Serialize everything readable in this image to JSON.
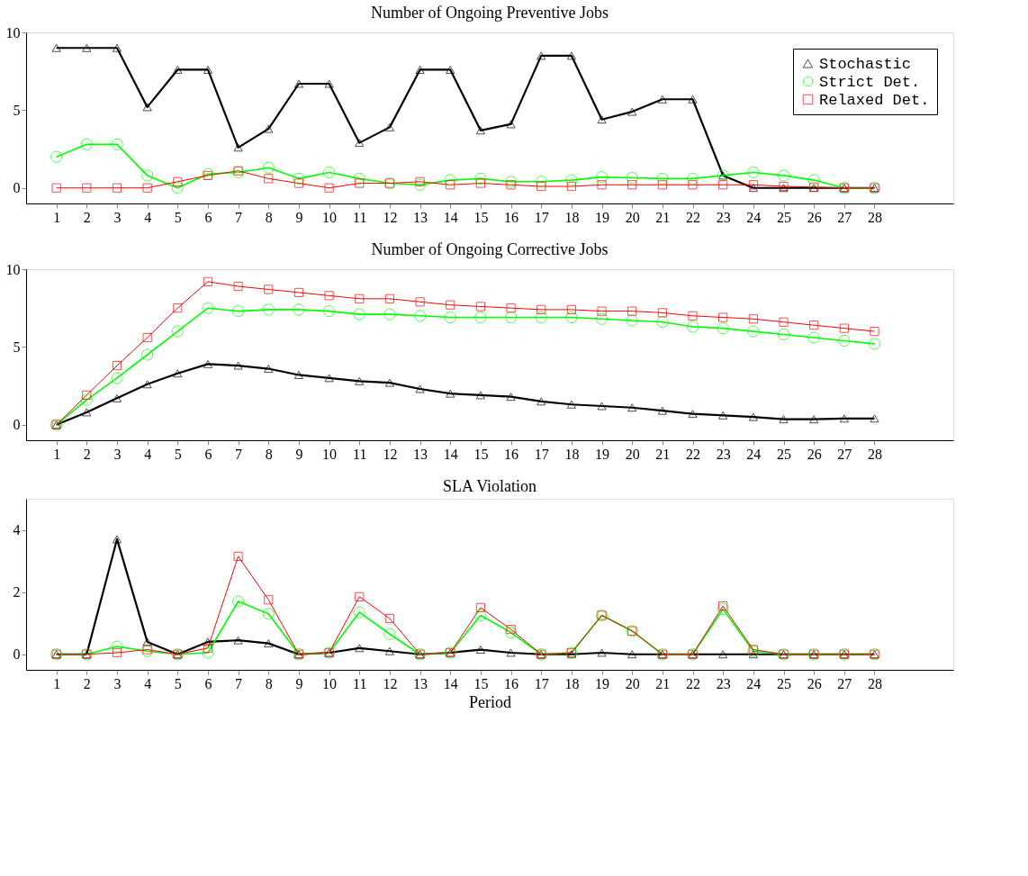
{
  "chart_data": [
    {
      "type": "line",
      "title": "Number of Ongoing Preventive Jobs",
      "x": [
        1,
        2,
        3,
        4,
        5,
        6,
        7,
        8,
        9,
        10,
        11,
        12,
        13,
        14,
        15,
        16,
        17,
        18,
        19,
        20,
        21,
        22,
        23,
        24,
        25,
        26,
        27,
        28
      ],
      "xlim": [
        0,
        30.6
      ],
      "xticks": [
        1,
        2,
        3,
        4,
        5,
        6,
        7,
        8,
        9,
        10,
        11,
        12,
        13,
        14,
        15,
        16,
        17,
        18,
        19,
        20,
        21,
        22,
        23,
        24,
        25,
        26,
        27,
        28
      ],
      "ylim": [
        -1,
        10
      ],
      "yticks": [
        0,
        5,
        10
      ],
      "grid": false,
      "legend": "top right",
      "series": [
        {
          "name": "Stochastic",
          "color": "#000000",
          "marker": "triangle",
          "values": [
            9,
            9,
            9,
            5.2,
            7.6,
            7.6,
            2.6,
            3.8,
            6.7,
            6.7,
            2.9,
            3.9,
            7.6,
            7.6,
            3.7,
            4.1,
            8.5,
            8.5,
            4.4,
            4.9,
            5.7,
            5.7,
            0.8,
            0,
            0,
            0,
            0,
            0
          ]
        },
        {
          "name": "Strict Det.",
          "color": "#00ff00",
          "marker": "circle",
          "values": [
            2.0,
            2.8,
            2.8,
            0.8,
            0,
            0.9,
            1.0,
            1.3,
            0.6,
            1.0,
            0.6,
            0.3,
            0.2,
            0.5,
            0.6,
            0.4,
            0.4,
            0.5,
            0.7,
            0.65,
            0.6,
            0.6,
            0.8,
            1.0,
            0.8,
            0.5,
            0,
            0
          ]
        },
        {
          "name": "Relaxed Det.",
          "color": "#ff0000",
          "marker": "square",
          "values": [
            0,
            0,
            0,
            0,
            0.4,
            0.8,
            1.1,
            0.6,
            0.3,
            0,
            0.3,
            0.3,
            0.4,
            0.2,
            0.3,
            0.2,
            0.1,
            0.1,
            0.2,
            0.2,
            0.2,
            0.2,
            0.2,
            0.2,
            0.1,
            0.05,
            0,
            0
          ]
        }
      ]
    },
    {
      "type": "line",
      "title": "Number of Ongoing Corrective Jobs",
      "x": [
        1,
        2,
        3,
        4,
        5,
        6,
        7,
        8,
        9,
        10,
        11,
        12,
        13,
        14,
        15,
        16,
        17,
        18,
        19,
        20,
        21,
        22,
        23,
        24,
        25,
        26,
        27,
        28
      ],
      "xlim": [
        0,
        30.6
      ],
      "xticks": [
        1,
        2,
        3,
        4,
        5,
        6,
        7,
        8,
        9,
        10,
        11,
        12,
        13,
        14,
        15,
        16,
        17,
        18,
        19,
        20,
        21,
        22,
        23,
        24,
        25,
        26,
        27,
        28
      ],
      "ylim": [
        -1,
        10
      ],
      "yticks": [
        0,
        5,
        10
      ],
      "grid": false,
      "legend": false,
      "series": [
        {
          "color": "#000000",
          "marker": "triangle",
          "values": [
            0,
            0.8,
            1.7,
            2.6,
            3.3,
            3.9,
            3.8,
            3.6,
            3.2,
            3.0,
            2.8,
            2.7,
            2.3,
            2.0,
            1.9,
            1.8,
            1.5,
            1.3,
            1.2,
            1.1,
            0.9,
            0.7,
            0.6,
            0.5,
            0.35,
            0.35,
            0.4,
            0.4
          ]
        },
        {
          "color": "#00ff00",
          "marker": "circle",
          "values": [
            0,
            1.6,
            3.0,
            4.5,
            6.0,
            7.5,
            7.3,
            7.4,
            7.4,
            7.3,
            7.1,
            7.1,
            7.0,
            6.9,
            6.9,
            6.9,
            6.9,
            6.9,
            6.8,
            6.7,
            6.6,
            6.3,
            6.2,
            6.0,
            5.8,
            5.6,
            5.4,
            5.2
          ]
        },
        {
          "color": "#ff0000",
          "marker": "square",
          "values": [
            0,
            1.9,
            3.8,
            5.6,
            7.5,
            9.2,
            8.9,
            8.7,
            8.5,
            8.3,
            8.1,
            8.1,
            7.9,
            7.7,
            7.6,
            7.5,
            7.4,
            7.4,
            7.3,
            7.3,
            7.2,
            7.0,
            6.9,
            6.8,
            6.6,
            6.4,
            6.2,
            6.0
          ]
        }
      ]
    },
    {
      "type": "line",
      "title": "SLA Violation",
      "xlabel": "Period",
      "x": [
        1,
        2,
        3,
        4,
        5,
        6,
        7,
        8,
        9,
        10,
        11,
        12,
        13,
        14,
        15,
        16,
        17,
        18,
        19,
        20,
        21,
        22,
        23,
        24,
        25,
        26,
        27,
        28
      ],
      "xlim": [
        0,
        30.6
      ],
      "xticks": [
        1,
        2,
        3,
        4,
        5,
        6,
        7,
        8,
        9,
        10,
        11,
        12,
        13,
        14,
        15,
        16,
        17,
        18,
        19,
        20,
        21,
        22,
        23,
        24,
        25,
        26,
        27,
        28
      ],
      "ylim": [
        -0.5,
        5
      ],
      "yticks": [
        0,
        2,
        4
      ],
      "grid": false,
      "legend": false,
      "series": [
        {
          "color": "#000000",
          "marker": "triangle",
          "values": [
            0,
            0,
            3.7,
            0.4,
            0,
            0.4,
            0.45,
            0.35,
            0,
            0.05,
            0.2,
            0.1,
            0,
            0.05,
            0.15,
            0.05,
            0,
            0,
            0.05,
            0,
            0,
            0,
            0,
            0,
            0,
            0,
            0,
            0
          ]
        },
        {
          "color": "#00ff00",
          "marker": "circle",
          "values": [
            0,
            0,
            0.25,
            0.1,
            0,
            0.05,
            1.7,
            1.3,
            0,
            0.05,
            1.35,
            0.65,
            0,
            0.05,
            1.25,
            0.7,
            0,
            0.05,
            1.25,
            0.75,
            0,
            0,
            1.45,
            0.1,
            0,
            0,
            0,
            0
          ]
        },
        {
          "color": "#ff0000",
          "marker": "square",
          "values": [
            0,
            0,
            0.05,
            0.15,
            0,
            0.2,
            3.15,
            1.75,
            0,
            0.05,
            1.85,
            1.15,
            0,
            0.05,
            1.5,
            0.8,
            0,
            0.05,
            1.25,
            0.75,
            0,
            0,
            1.55,
            0.15,
            0,
            0,
            0,
            0
          ]
        }
      ]
    }
  ]
}
